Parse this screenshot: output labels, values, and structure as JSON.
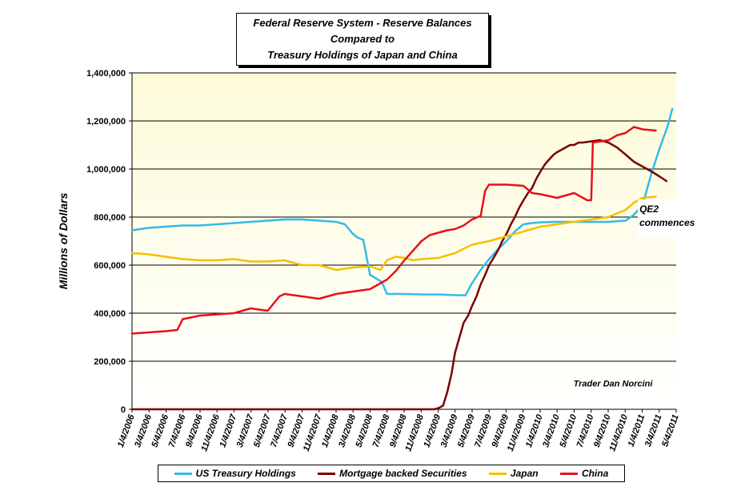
{
  "title_lines": [
    "Federal Reserve System - Reserve Balances",
    "Compared to",
    "Treasury Holdings of Japan and China"
  ],
  "chart_data": {
    "type": "line",
    "ylabel": "Millions of Dollars",
    "ylim": [
      0,
      1400000
    ],
    "yticks": [
      0,
      200000,
      400000,
      600000,
      800000,
      1000000,
      1200000,
      1400000
    ],
    "ytick_labels": [
      "0",
      "200,000",
      "400,000",
      "600,000",
      "800,000",
      "1,000,000",
      "1,200,000",
      "1,400,000"
    ],
    "xlim": [
      "2006-01-04",
      "2011-05-04"
    ],
    "xtick_labels": [
      "1/4/2006",
      "3/4/2006",
      "5/4/2006",
      "7/4/2006",
      "9/4/2006",
      "11/4/2006",
      "1/4/2007",
      "3/4/2007",
      "5/4/2007",
      "7/4/2007",
      "9/4/2007",
      "11/4/2007",
      "1/4/2008",
      "3/4/2008",
      "5/4/2008",
      "7/4/2008",
      "9/4/2008",
      "11/4/2008",
      "1/4/2009",
      "3/4/2009",
      "5/4/2009",
      "7/4/2009",
      "9/4/2009",
      "11/4/2009",
      "1/4/2010",
      "3/4/2010",
      "5/4/2010",
      "7/4/2010",
      "9/4/2010",
      "11/4/2010",
      "1/4/2011",
      "3/4/2011",
      "5/4/2011"
    ],
    "grid": true,
    "legend_position": "bottom",
    "background_gradient": [
      "#fdfbd8",
      "#ffffff"
    ],
    "annotations": [
      {
        "text": "QE2\ncommences",
        "x": "2011-01-04",
        "y": 800000
      },
      {
        "text": "Trader Dan Norcini",
        "x": "2010-09-20",
        "y": 95000
      }
    ],
    "series": [
      {
        "name": "US Treasury Holdings",
        "color": "#33bbe8",
        "x": [
          "2006-01-04",
          "2006-03-04",
          "2006-05-04",
          "2006-07-04",
          "2006-09-04",
          "2006-11-04",
          "2007-01-04",
          "2007-03-04",
          "2007-05-04",
          "2007-07-04",
          "2007-09-04",
          "2007-11-04",
          "2008-01-04",
          "2008-02-04",
          "2008-03-04",
          "2008-03-20",
          "2008-04-10",
          "2008-05-04",
          "2008-06-15",
          "2008-07-04",
          "2008-09-04",
          "2008-11-04",
          "2009-01-04",
          "2009-03-04",
          "2009-04-10",
          "2009-05-04",
          "2009-06-04",
          "2009-07-04",
          "2009-08-04",
          "2009-09-04",
          "2009-10-04",
          "2009-11-04",
          "2009-12-04",
          "2010-01-04",
          "2010-03-04",
          "2010-05-04",
          "2010-07-04",
          "2010-09-04",
          "2010-11-04",
          "2010-12-04",
          "2011-01-04",
          "2011-02-04",
          "2011-03-04",
          "2011-04-04",
          "2011-04-20"
        ],
        "values": [
          745000,
          755000,
          760000,
          765000,
          765000,
          770000,
          775000,
          780000,
          785000,
          790000,
          790000,
          785000,
          780000,
          770000,
          730000,
          715000,
          705000,
          560000,
          530000,
          480000,
          480000,
          478000,
          478000,
          475000,
          474000,
          525000,
          580000,
          625000,
          665000,
          700000,
          740000,
          770000,
          775000,
          778000,
          780000,
          780000,
          780000,
          780000,
          785000,
          810000,
          850000,
          980000,
          1080000,
          1180000,
          1250000
        ]
      },
      {
        "name": "Mortgage backed Securities",
        "color": "#7a0000",
        "x": [
          "2006-01-04",
          "2008-12-20",
          "2009-01-04",
          "2009-01-20",
          "2009-02-04",
          "2009-02-20",
          "2009-03-04",
          "2009-03-20",
          "2009-04-04",
          "2009-04-20",
          "2009-05-04",
          "2009-05-20",
          "2009-06-04",
          "2009-06-20",
          "2009-07-04",
          "2009-07-20",
          "2009-08-04",
          "2009-08-20",
          "2009-09-04",
          "2009-09-20",
          "2009-10-04",
          "2009-10-20",
          "2009-11-04",
          "2009-11-20",
          "2009-12-04",
          "2009-12-20",
          "2010-01-04",
          "2010-01-20",
          "2010-02-04",
          "2010-02-20",
          "2010-03-04",
          "2010-03-20",
          "2010-04-04",
          "2010-04-20",
          "2010-05-04",
          "2010-05-20",
          "2010-06-04",
          "2010-07-04",
          "2010-08-04",
          "2010-09-04",
          "2010-10-04",
          "2010-11-04",
          "2010-12-04",
          "2011-01-04",
          "2011-02-04",
          "2011-03-04",
          "2011-03-30"
        ],
        "values": [
          0,
          0,
          5000,
          15000,
          70000,
          150000,
          235000,
          300000,
          360000,
          390000,
          430000,
          470000,
          520000,
          560000,
          600000,
          630000,
          660000,
          700000,
          730000,
          770000,
          800000,
          840000,
          870000,
          900000,
          920000,
          960000,
          990000,
          1020000,
          1040000,
          1060000,
          1070000,
          1080000,
          1090000,
          1100000,
          1100000,
          1110000,
          1110000,
          1115000,
          1120000,
          1110000,
          1090000,
          1060000,
          1030000,
          1010000,
          990000,
          970000,
          950000
        ]
      },
      {
        "name": "Japan",
        "color": "#f5c000",
        "x": [
          "2006-01-04",
          "2006-03-04",
          "2006-05-04",
          "2006-07-04",
          "2006-09-04",
          "2006-11-04",
          "2007-01-04",
          "2007-03-04",
          "2007-05-04",
          "2007-07-04",
          "2007-09-04",
          "2007-11-04",
          "2008-01-04",
          "2008-03-04",
          "2008-05-04",
          "2008-06-10",
          "2008-07-04",
          "2008-08-04",
          "2008-09-04",
          "2008-10-04",
          "2008-11-04",
          "2009-01-04",
          "2009-03-04",
          "2009-05-04",
          "2009-07-04",
          "2009-09-04",
          "2009-11-04",
          "2010-01-04",
          "2010-03-04",
          "2010-05-04",
          "2010-07-04",
          "2010-09-04",
          "2010-10-04",
          "2010-11-04",
          "2010-12-04",
          "2011-01-04",
          "2011-02-20"
        ],
        "values": [
          650000,
          645000,
          635000,
          625000,
          620000,
          620000,
          625000,
          615000,
          615000,
          620000,
          600000,
          600000,
          580000,
          590000,
          595000,
          580000,
          620000,
          635000,
          630000,
          620000,
          625000,
          630000,
          650000,
          685000,
          700000,
          720000,
          740000,
          760000,
          770000,
          780000,
          790000,
          800000,
          815000,
          830000,
          860000,
          880000,
          885000
        ]
      },
      {
        "name": "China",
        "color": "#e8101a",
        "x": [
          "2006-01-04",
          "2006-03-04",
          "2006-05-04",
          "2006-06-15",
          "2006-07-04",
          "2006-09-04",
          "2006-11-04",
          "2007-01-04",
          "2007-03-04",
          "2007-05-04",
          "2007-06-15",
          "2007-07-04",
          "2007-09-04",
          "2007-11-04",
          "2008-01-04",
          "2008-03-04",
          "2008-05-04",
          "2008-07-04",
          "2008-08-04",
          "2008-09-04",
          "2008-10-20",
          "2008-11-04",
          "2008-12-04",
          "2009-01-04",
          "2009-02-04",
          "2009-03-04",
          "2009-04-04",
          "2009-05-04",
          "2009-06-04",
          "2009-06-20",
          "2009-07-04",
          "2009-09-04",
          "2009-11-04",
          "2009-12-04",
          "2010-01-04",
          "2010-03-04",
          "2010-05-04",
          "2010-06-20",
          "2010-07-04",
          "2010-07-10",
          "2010-09-04",
          "2010-10-04",
          "2010-11-04",
          "2010-12-04",
          "2011-01-04",
          "2011-02-20"
        ],
        "values": [
          315000,
          320000,
          325000,
          330000,
          375000,
          390000,
          395000,
          400000,
          420000,
          410000,
          470000,
          480000,
          470000,
          460000,
          480000,
          490000,
          500000,
          540000,
          575000,
          620000,
          680000,
          700000,
          725000,
          735000,
          745000,
          750000,
          765000,
          790000,
          805000,
          910000,
          935000,
          935000,
          930000,
          900000,
          895000,
          880000,
          900000,
          870000,
          870000,
          1110000,
          1120000,
          1140000,
          1150000,
          1175000,
          1165000,
          1160000
        ]
      }
    ]
  }
}
